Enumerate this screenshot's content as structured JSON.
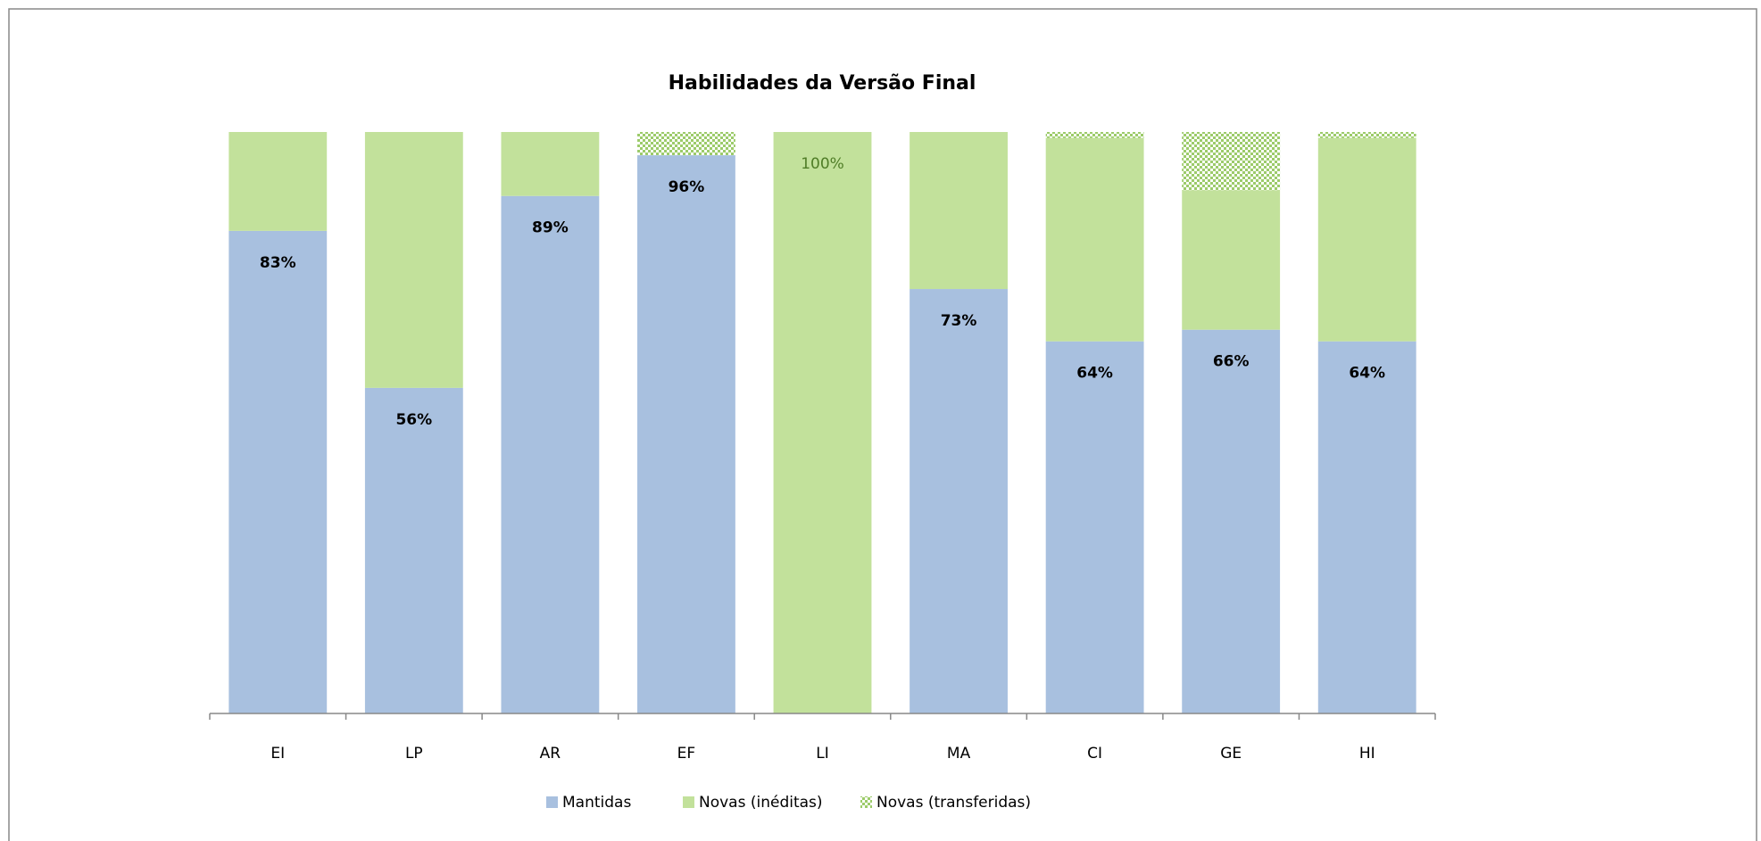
{
  "chart_data": {
    "type": "stacked_bar",
    "title": "Habilidades da Versão Final",
    "categories": [
      "EI",
      "LP",
      "AR",
      "EF",
      "LI",
      "MA",
      "CI",
      "GE",
      "HI"
    ],
    "series": [
      {
        "name": "Mantidas",
        "color": "#a8c0df",
        "values": [
          83,
          56,
          89,
          96,
          0,
          73,
          64,
          66,
          64
        ],
        "value_labels": [
          "83%",
          "56%",
          "89%",
          "96%",
          null,
          "73%",
          "64%",
          "66%",
          "64%"
        ]
      },
      {
        "name": "Novas (inéditas)",
        "color": "#c2e19b",
        "values": [
          17,
          44,
          11,
          0,
          100,
          27,
          35,
          24,
          35
        ],
        "value_labels": [
          null,
          null,
          null,
          null,
          "100%",
          null,
          null,
          null,
          null
        ]
      },
      {
        "name": "Novas (transferidas)",
        "color": "#9ccb6a",
        "pattern": "dots",
        "values": [
          0,
          0,
          0,
          4,
          0,
          0,
          1,
          10,
          1
        ]
      }
    ],
    "ylim": [
      0,
      100
    ]
  }
}
